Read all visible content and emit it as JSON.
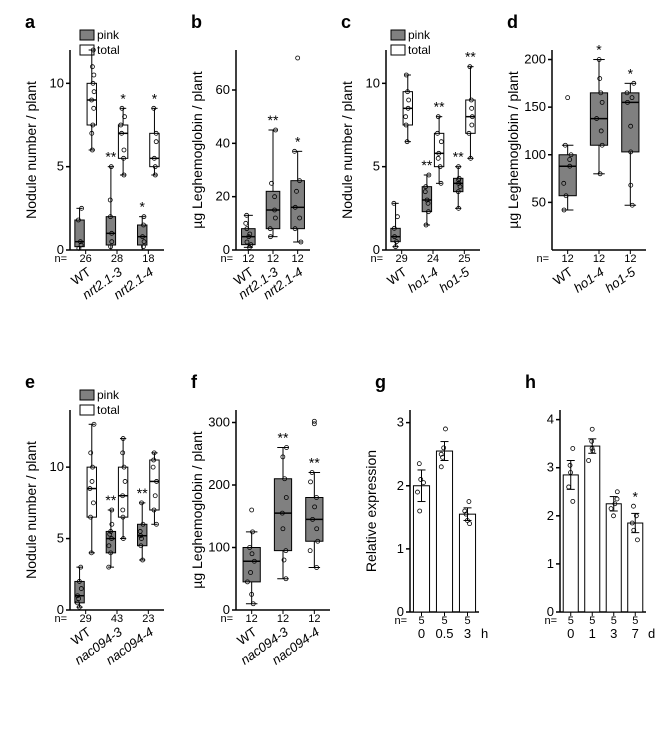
{
  "colors": {
    "gray": "#808080",
    "white": "#ffffff",
    "black": "#000000"
  },
  "panels": {
    "a": {
      "label": "a",
      "ylabel": "Nodule number / plant",
      "legend": [
        {
          "label": "pink",
          "fill": "#808080"
        },
        {
          "label": "total",
          "fill": "#ffffff"
        }
      ],
      "ylim": [
        0,
        12
      ],
      "yticks": [
        0,
        5,
        10
      ],
      "cats": [
        "WT",
        "nrt2.1-3",
        "nrt2.1-4"
      ],
      "italic": [
        false,
        true,
        true
      ],
      "boxes": [
        {
          "fill": "#808080",
          "q1": 0.2,
          "med": 0.5,
          "q3": 1.8,
          "min": 0,
          "max": 2.5,
          "points": [
            0.1,
            0.3,
            0.5,
            1.8,
            2.5
          ],
          "sig": ""
        },
        {
          "fill": "#ffffff",
          "q1": 7.5,
          "med": 9,
          "q3": 10,
          "min": 6,
          "max": 12,
          "points": [
            6,
            7,
            7.5,
            8.5,
            9,
            9.5,
            10,
            10.5,
            11,
            12
          ],
          "sig": ""
        },
        {
          "fill": "#808080",
          "q1": 0.3,
          "med": 1,
          "q3": 2,
          "min": 0,
          "max": 5,
          "points": [
            0.2,
            0.5,
            1,
            2,
            3,
            5
          ],
          "sig": "**"
        },
        {
          "fill": "#ffffff",
          "q1": 5.5,
          "med": 7,
          "q3": 7.5,
          "min": 4.5,
          "max": 8.5,
          "points": [
            4.5,
            5.5,
            6,
            7,
            7.5,
            8,
            8.5
          ],
          "sig": "*"
        },
        {
          "fill": "#808080",
          "q1": 0.3,
          "med": 0.8,
          "q3": 1.5,
          "min": 0,
          "max": 2,
          "points": [
            0.2,
            0.5,
            0.8,
            1.5,
            2
          ],
          "sig": "*"
        },
        {
          "fill": "#ffffff",
          "q1": 5,
          "med": 5.5,
          "q3": 7,
          "min": 4.5,
          "max": 8.5,
          "points": [
            4.5,
            5,
            5.5,
            6.5,
            7,
            8.5
          ],
          "sig": "*"
        }
      ],
      "n": [
        "26",
        "28",
        "18"
      ]
    },
    "b": {
      "label": "b",
      "ylabel": "µg Leghemoglobin / plant",
      "ylim": [
        0,
        75
      ],
      "yticks": [
        0,
        20,
        40,
        60
      ],
      "cats": [
        "WT",
        "nrt2.1-3",
        "nrt2.1-4"
      ],
      "italic": [
        false,
        true,
        true
      ],
      "boxes": [
        {
          "fill": "#808080",
          "q1": 2,
          "med": 5,
          "q3": 8,
          "min": 1,
          "max": 13,
          "points": [
            1,
            2,
            3,
            5,
            6,
            8,
            10,
            13
          ],
          "sig": ""
        },
        {
          "fill": "#808080",
          "q1": 8,
          "med": 15,
          "q3": 22,
          "min": 5,
          "max": 45,
          "points": [
            5,
            8,
            12,
            15,
            20,
            25,
            45
          ],
          "sig": "**"
        },
        {
          "fill": "#808080",
          "q1": 8,
          "med": 16,
          "q3": 26,
          "min": 3,
          "max": 37,
          "points": [
            3,
            8,
            12,
            16,
            22,
            26,
            37
          ],
          "outliers": [
            72
          ],
          "sig": "*"
        }
      ],
      "n": [
        "12",
        "12",
        "12"
      ]
    },
    "c": {
      "label": "c",
      "ylabel": "Nodule number / plant",
      "legend": [
        {
          "label": "pink",
          "fill": "#808080"
        },
        {
          "label": "total",
          "fill": "#ffffff"
        }
      ],
      "ylim": [
        0,
        12
      ],
      "yticks": [
        0,
        5,
        10
      ],
      "cats": [
        "WT",
        "ho1-4",
        "ho1-5"
      ],
      "italic": [
        false,
        true,
        true
      ],
      "boxes": [
        {
          "fill": "#808080",
          "q1": 0.5,
          "med": 0.8,
          "q3": 1.3,
          "min": 0.2,
          "max": 2.8,
          "points": [
            0.2,
            0.5,
            0.8,
            1.3,
            2,
            2.8
          ],
          "sig": ""
        },
        {
          "fill": "#ffffff",
          "q1": 7.5,
          "med": 8.5,
          "q3": 9.5,
          "min": 6.5,
          "max": 10.5,
          "points": [
            6.5,
            7.5,
            8,
            8.5,
            9,
            9.5,
            10.5
          ],
          "sig": ""
        },
        {
          "fill": "#808080",
          "q1": 2.3,
          "med": 3,
          "q3": 3.8,
          "min": 1.5,
          "max": 4.5,
          "points": [
            1.5,
            2.3,
            2.8,
            3,
            3.5,
            3.8,
            4.5
          ],
          "sig": "**"
        },
        {
          "fill": "#ffffff",
          "q1": 5,
          "med": 5.8,
          "q3": 7,
          "min": 4,
          "max": 8,
          "points": [
            4,
            5,
            5.5,
            5.8,
            6.5,
            7,
            8
          ],
          "sig": "**"
        },
        {
          "fill": "#808080",
          "q1": 3.5,
          "med": 4,
          "q3": 4.3,
          "min": 2.5,
          "max": 5,
          "points": [
            2.5,
            3.5,
            3.8,
            4,
            4.2,
            4.3,
            5
          ],
          "sig": "**"
        },
        {
          "fill": "#ffffff",
          "q1": 7,
          "med": 8,
          "q3": 9,
          "min": 5.5,
          "max": 11,
          "points": [
            5.5,
            7,
            7.5,
            8,
            8.5,
            9,
            11
          ],
          "sig": "**"
        }
      ],
      "n": [
        "29",
        "24",
        "25"
      ]
    },
    "d": {
      "label": "d",
      "ylabel": "µg Leghemoglobin / plant",
      "ylim": [
        0,
        210
      ],
      "yticks": [
        50,
        100,
        150,
        200
      ],
      "cats": [
        "WT",
        "ho1-4",
        "ho1-5"
      ],
      "italic": [
        false,
        true,
        true
      ],
      "boxes": [
        {
          "fill": "#808080",
          "q1": 57,
          "med": 88,
          "q3": 100,
          "min": 42,
          "max": 110,
          "points": [
            42,
            57,
            70,
            88,
            95,
            100,
            110
          ],
          "outliers": [
            160
          ],
          "sig": ""
        },
        {
          "fill": "#808080",
          "q1": 110,
          "med": 138,
          "q3": 165,
          "min": 80,
          "max": 200,
          "points": [
            80,
            110,
            125,
            138,
            155,
            165,
            180,
            200
          ],
          "sig": "*"
        },
        {
          "fill": "#808080",
          "q1": 103,
          "med": 155,
          "q3": 165,
          "min": 47,
          "max": 175,
          "points": [
            47,
            68,
            103,
            130,
            155,
            160,
            165,
            175
          ],
          "sig": "*"
        }
      ],
      "n": [
        "12",
        "12",
        "12"
      ]
    },
    "e": {
      "label": "e",
      "ylabel": "Nodule number / plant",
      "legend": [
        {
          "label": "pink",
          "fill": "#808080"
        },
        {
          "label": "total",
          "fill": "#ffffff"
        }
      ],
      "ylim": [
        0,
        14
      ],
      "yticks": [
        0,
        5,
        10
      ],
      "cats": [
        "WT",
        "nac094-3",
        "nac094-4"
      ],
      "italic": [
        false,
        true,
        true
      ],
      "boxes": [
        {
          "fill": "#808080",
          "q1": 0.5,
          "med": 1,
          "q3": 2,
          "min": 0.2,
          "max": 3,
          "points": [
            0.2,
            0.5,
            0.8,
            1,
            1.5,
            2,
            3
          ],
          "sig": ""
        },
        {
          "fill": "#ffffff",
          "q1": 6.5,
          "med": 8.5,
          "q3": 10,
          "min": 4,
          "max": 13,
          "points": [
            4,
            6.5,
            7.5,
            8.5,
            9,
            10,
            11,
            13
          ],
          "sig": ""
        },
        {
          "fill": "#808080",
          "q1": 4,
          "med": 5,
          "q3": 5.5,
          "min": 3,
          "max": 7,
          "points": [
            3,
            4,
            4.5,
            5,
            5.3,
            5.5,
            6,
            7
          ],
          "sig": "**"
        },
        {
          "fill": "#ffffff",
          "q1": 6.5,
          "med": 8,
          "q3": 10,
          "min": 5,
          "max": 12,
          "points": [
            5,
            6.5,
            7,
            8,
            9,
            10,
            11,
            12
          ],
          "sig": ""
        },
        {
          "fill": "#808080",
          "q1": 4.5,
          "med": 5.2,
          "q3": 6,
          "min": 3.5,
          "max": 7.5,
          "points": [
            3.5,
            4.5,
            5,
            5.2,
            5.5,
            6,
            7.5
          ],
          "sig": "**"
        },
        {
          "fill": "#ffffff",
          "q1": 7,
          "med": 9,
          "q3": 10.5,
          "min": 6,
          "max": 11,
          "points": [
            6,
            7,
            8,
            9,
            10,
            10.5,
            11
          ],
          "sig": ""
        }
      ],
      "n": [
        "29",
        "43",
        "23"
      ]
    },
    "f": {
      "label": "f",
      "ylabel": "µg Leghemoglobin / plant",
      "ylim": [
        0,
        320
      ],
      "yticks": [
        0,
        100,
        200,
        300
      ],
      "cats": [
        "WT",
        "nac094-3",
        "nac094-4"
      ],
      "italic": [
        false,
        true,
        true
      ],
      "boxes": [
        {
          "fill": "#808080",
          "q1": 45,
          "med": 78,
          "q3": 100,
          "min": 10,
          "max": 125,
          "points": [
            10,
            25,
            45,
            60,
            78,
            90,
            100,
            125
          ],
          "outliers": [
            160
          ],
          "sig": ""
        },
        {
          "fill": "#808080",
          "q1": 95,
          "med": 155,
          "q3": 210,
          "min": 50,
          "max": 260,
          "points": [
            50,
            80,
            95,
            130,
            155,
            180,
            210,
            245,
            260
          ],
          "sig": "**"
        },
        {
          "fill": "#808080",
          "q1": 110,
          "med": 145,
          "q3": 180,
          "min": 68,
          "max": 220,
          "points": [
            68,
            95,
            110,
            130,
            145,
            165,
            180,
            205,
            220
          ],
          "outliers": [
            298,
            302
          ],
          "sig": "**"
        }
      ],
      "n": [
        "12",
        "12",
        "12"
      ]
    },
    "g": {
      "label": "g",
      "ylabel": "Relative expression",
      "ylim": [
        0,
        3.2
      ],
      "yticks": [
        0,
        1,
        2,
        3
      ],
      "cats": [
        "0",
        "0.5",
        "3"
      ],
      "unit": "h",
      "bars": [
        {
          "val": 2.0,
          "err": 0.25,
          "points": [
            1.6,
            1.9,
            2.05,
            2.1,
            2.35
          ],
          "sig": ""
        },
        {
          "val": 2.55,
          "err": 0.15,
          "points": [
            2.3,
            2.45,
            2.5,
            2.6,
            2.9
          ],
          "sig": ""
        },
        {
          "val": 1.55,
          "err": 0.1,
          "points": [
            1.4,
            1.45,
            1.55,
            1.6,
            1.75
          ],
          "sig": ""
        }
      ],
      "n": [
        "5",
        "5",
        "5"
      ]
    },
    "h": {
      "label": "h",
      "ylabel": "",
      "ylim": [
        0,
        4.2
      ],
      "yticks": [
        0,
        1,
        2,
        3,
        4
      ],
      "cats": [
        "0",
        "1",
        "3",
        "7"
      ],
      "unit": "d",
      "bars": [
        {
          "val": 2.85,
          "err": 0.3,
          "points": [
            2.3,
            2.6,
            2.9,
            3.05,
            3.4
          ],
          "sig": ""
        },
        {
          "val": 3.45,
          "err": 0.15,
          "points": [
            3.15,
            3.35,
            3.4,
            3.55,
            3.8
          ],
          "sig": ""
        },
        {
          "val": 2.25,
          "err": 0.15,
          "points": [
            2.0,
            2.15,
            2.25,
            2.35,
            2.5
          ],
          "sig": ""
        },
        {
          "val": 1.85,
          "err": 0.2,
          "points": [
            1.5,
            1.7,
            1.85,
            2.0,
            2.2
          ],
          "sig": "*"
        }
      ],
      "n": [
        "5",
        "5",
        "5",
        "5"
      ]
    }
  }
}
